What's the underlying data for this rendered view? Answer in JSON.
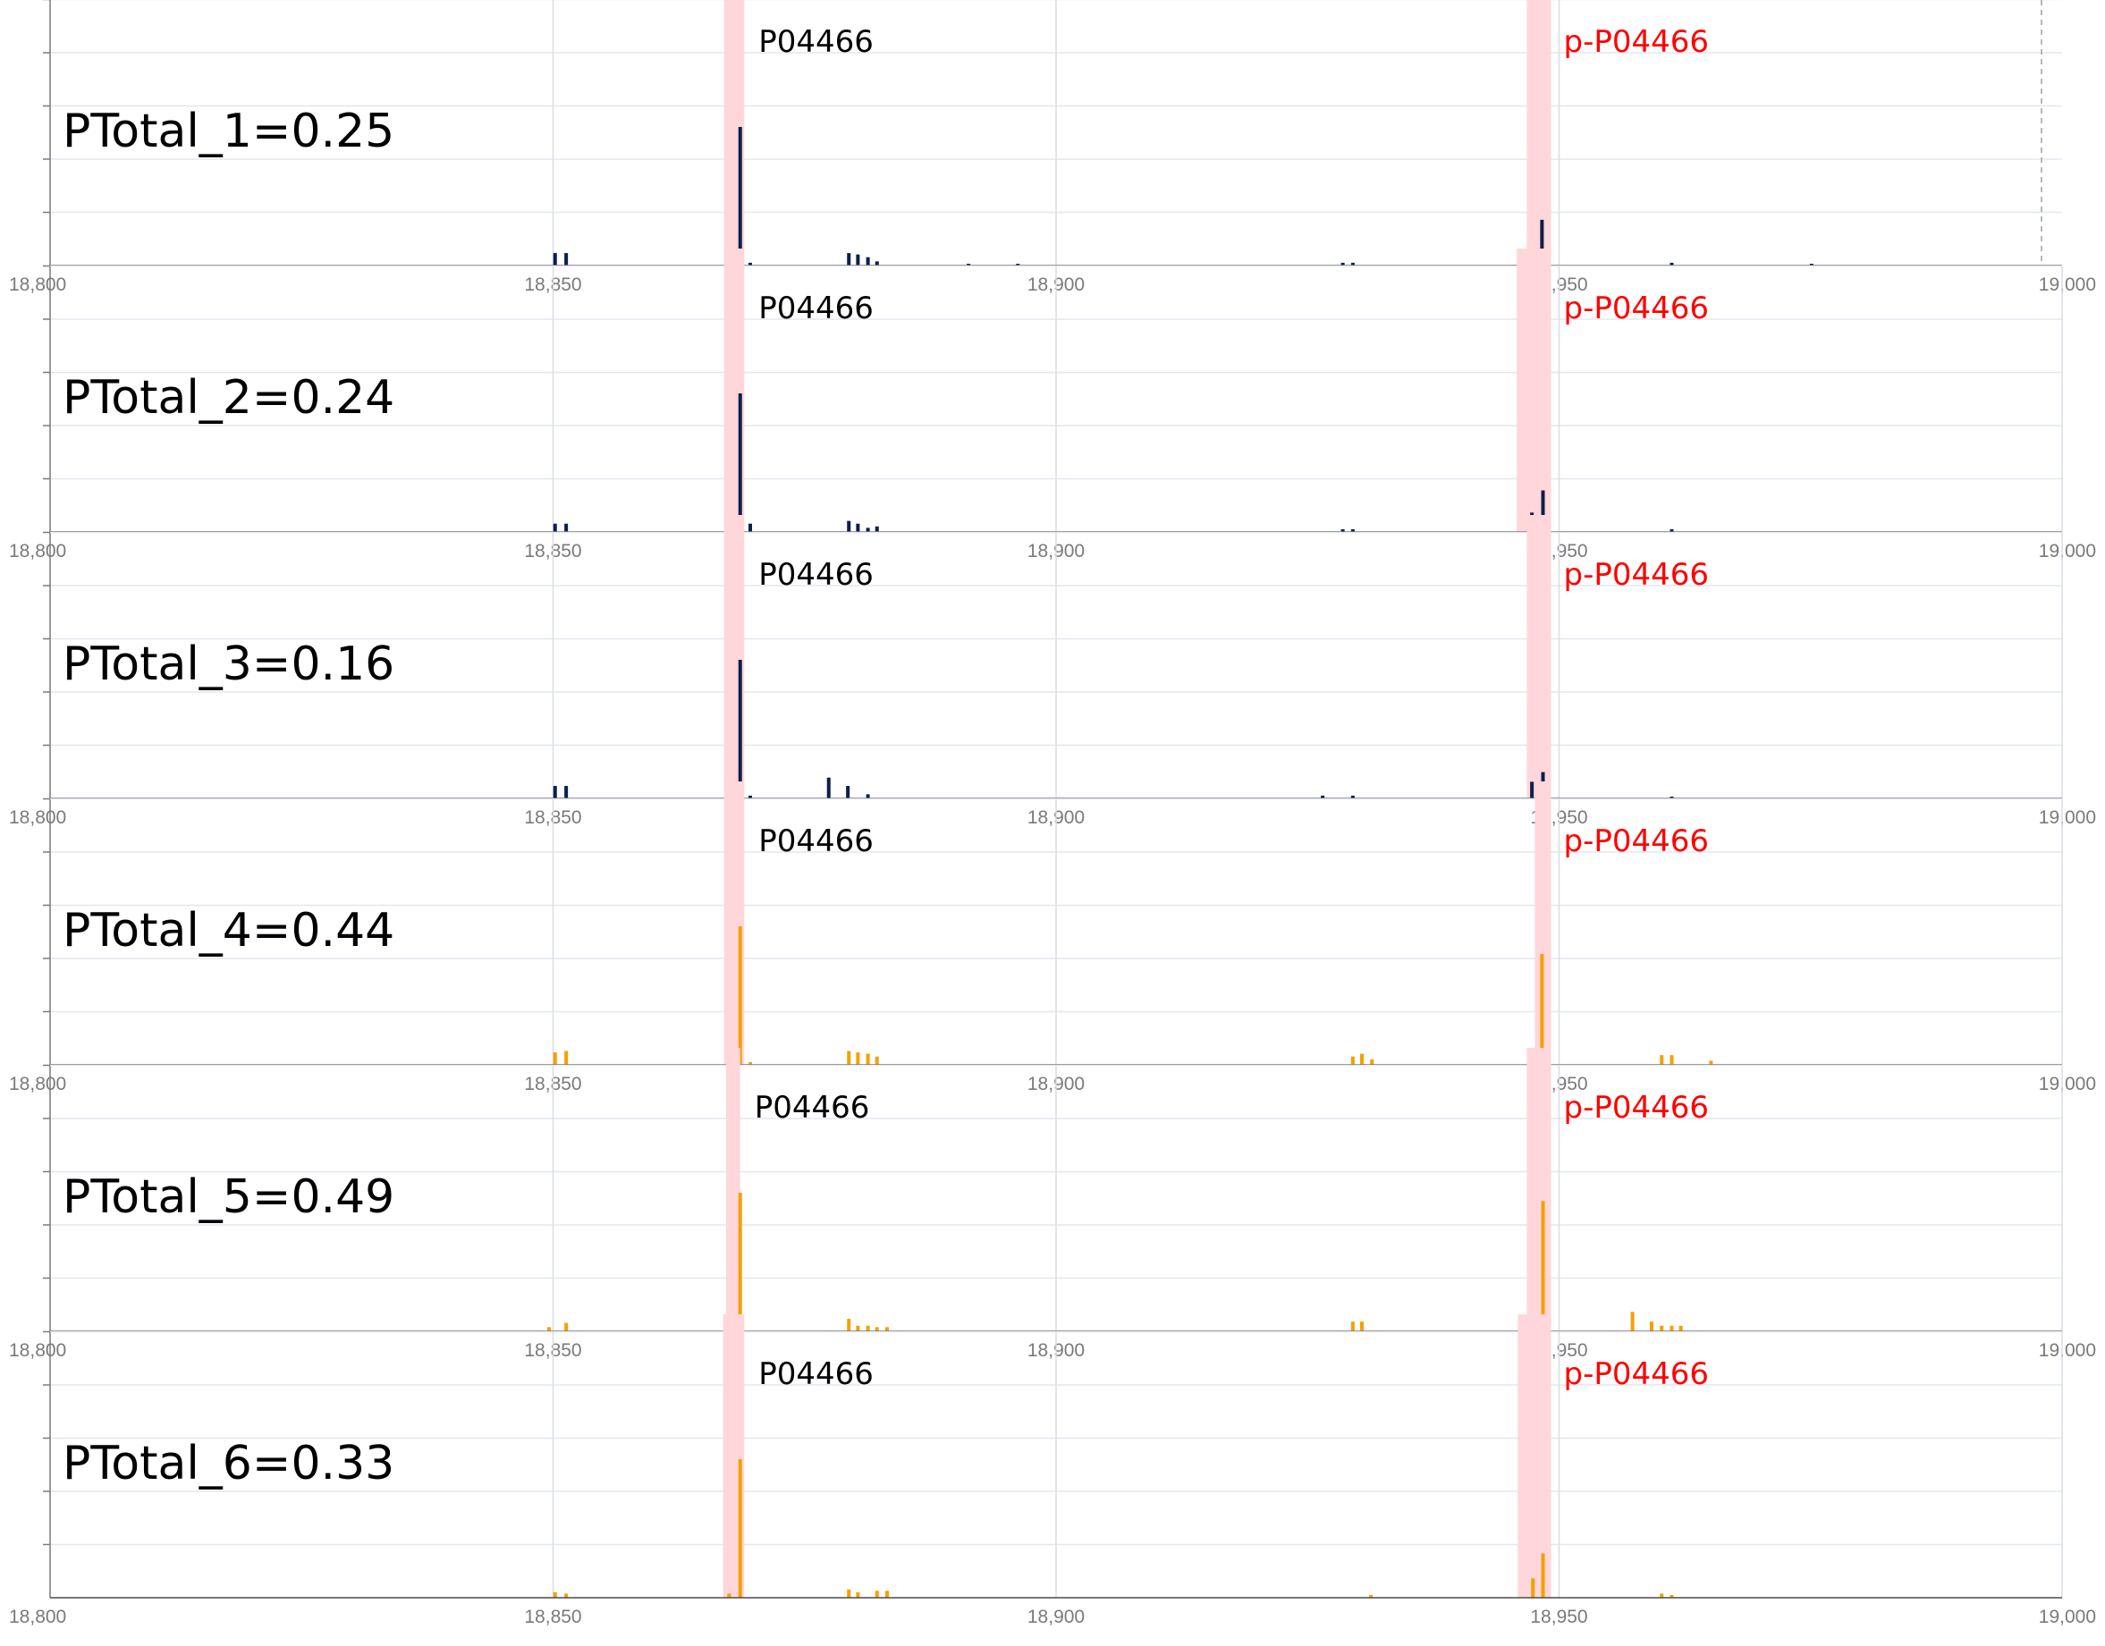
{
  "chart_data": [
    {
      "type": "bar",
      "xlim": [
        18800,
        19000
      ],
      "x_ticks": [
        18800,
        18850,
        18900,
        18950,
        19000
      ],
      "x_tick_labels": [
        "18,800",
        "18,850",
        "18,900",
        "18,950",
        "19,000"
      ],
      "grid": true,
      "color": "#0d1f4a",
      "annotation": "PTotal_1=0.25",
      "highlights": [
        {
          "label": "P04466",
          "color": "#000000",
          "from": 18867.0,
          "to": 18869.0
        },
        {
          "label": "p-P04466",
          "color": "#ff0000",
          "from": 18946.8,
          "to": 18949.2
        }
      ],
      "peaks": [
        {
          "x": 18850.2,
          "y": 0.09
        },
        {
          "x": 18851.3,
          "y": 0.09
        },
        {
          "x": 18867.5,
          "y": 0.09
        },
        {
          "x": 18868.6,
          "y": 1.0
        },
        {
          "x": 18869.6,
          "y": 0.02
        },
        {
          "x": 18879.4,
          "y": 0.09
        },
        {
          "x": 18880.3,
          "y": 0.08
        },
        {
          "x": 18881.3,
          "y": 0.06
        },
        {
          "x": 18882.2,
          "y": 0.03
        },
        {
          "x": 18891.3,
          "y": 0.01
        },
        {
          "x": 18896.2,
          "y": 0.01
        },
        {
          "x": 18928.5,
          "y": 0.02
        },
        {
          "x": 18929.5,
          "y": 0.02
        },
        {
          "x": 18948.3,
          "y": 0.33
        },
        {
          "x": 18961.2,
          "y": 0.02
        },
        {
          "x": 18975.1,
          "y": 0.01
        }
      ]
    },
    {
      "type": "bar",
      "xlim": [
        18800,
        19000
      ],
      "x_ticks": [
        18800,
        18850,
        18900,
        18950,
        19000
      ],
      "x_tick_labels": [
        "18,800",
        "18,850",
        "18,900",
        "18,950",
        "19,000"
      ],
      "grid": true,
      "color": "#0d1f4a",
      "annotation": "PTotal_2=0.24",
      "highlights": [
        {
          "label": "P04466",
          "color": "#000000",
          "from": 18867.0,
          "to": 18869.0
        },
        {
          "label": "p-P04466",
          "color": "#ff0000",
          "from": 18945.8,
          "to": 18949.2
        }
      ],
      "peaks": [
        {
          "x": 18850.2,
          "y": 0.06
        },
        {
          "x": 18851.3,
          "y": 0.06
        },
        {
          "x": 18867.5,
          "y": 0.05
        },
        {
          "x": 18868.6,
          "y": 1.0
        },
        {
          "x": 18869.6,
          "y": 0.06
        },
        {
          "x": 18879.4,
          "y": 0.08
        },
        {
          "x": 18880.3,
          "y": 0.06
        },
        {
          "x": 18881.3,
          "y": 0.03
        },
        {
          "x": 18882.2,
          "y": 0.04
        },
        {
          "x": 18928.5,
          "y": 0.02
        },
        {
          "x": 18929.5,
          "y": 0.02
        },
        {
          "x": 18947.3,
          "y": 0.14
        },
        {
          "x": 18948.4,
          "y": 0.3
        },
        {
          "x": 18961.2,
          "y": 0.02
        }
      ]
    },
    {
      "type": "bar",
      "xlim": [
        18800,
        19000
      ],
      "x_ticks": [
        18800,
        18850,
        18900,
        18950,
        19000
      ],
      "x_tick_labels": [
        "18,800",
        "18,850",
        "18,900",
        "18,950",
        "19,000"
      ],
      "grid": true,
      "color": "#0d1f4a",
      "annotation": "PTotal_3=0.16",
      "highlights": [
        {
          "label": "P04466",
          "color": "#000000",
          "from": 18867.0,
          "to": 18869.0
        },
        {
          "label": "p-P04466",
          "color": "#ff0000",
          "from": 18946.8,
          "to": 18949.2
        }
      ],
      "peaks": [
        {
          "x": 18850.2,
          "y": 0.09
        },
        {
          "x": 18851.3,
          "y": 0.09
        },
        {
          "x": 18867.5,
          "y": 0.04
        },
        {
          "x": 18868.6,
          "y": 1.0
        },
        {
          "x": 18869.6,
          "y": 0.02
        },
        {
          "x": 18877.4,
          "y": 0.15
        },
        {
          "x": 18879.3,
          "y": 0.09
        },
        {
          "x": 18881.3,
          "y": 0.03
        },
        {
          "x": 18926.5,
          "y": 0.02
        },
        {
          "x": 18929.5,
          "y": 0.02
        },
        {
          "x": 18947.3,
          "y": 0.12
        },
        {
          "x": 18948.4,
          "y": 0.19
        },
        {
          "x": 18961.2,
          "y": 0.01
        }
      ]
    },
    {
      "type": "bar",
      "xlim": [
        18800,
        19000
      ],
      "x_ticks": [
        18800,
        18850,
        18900,
        18950,
        19000
      ],
      "x_tick_labels": [
        "18,800",
        "18,850",
        "18,900",
        "18,950",
        "19,000"
      ],
      "grid": true,
      "color": "#f5a000",
      "annotation": "PTotal_4=0.44",
      "highlights": [
        {
          "label": "P04466",
          "color": "#000000",
          "from": 18867.0,
          "to": 18869.0
        },
        {
          "label": "p-P04466",
          "color": "#ff0000",
          "from": 18947.6,
          "to": 18949.2
        }
      ],
      "peaks": [
        {
          "x": 18850.2,
          "y": 0.09
        },
        {
          "x": 18851.3,
          "y": 0.1
        },
        {
          "x": 18867.5,
          "y": 0.04
        },
        {
          "x": 18868.6,
          "y": 1.0
        },
        {
          "x": 18869.6,
          "y": 0.02
        },
        {
          "x": 18879.4,
          "y": 0.1
        },
        {
          "x": 18880.3,
          "y": 0.09
        },
        {
          "x": 18881.3,
          "y": 0.08
        },
        {
          "x": 18882.2,
          "y": 0.06
        },
        {
          "x": 18929.5,
          "y": 0.06
        },
        {
          "x": 18930.4,
          "y": 0.08
        },
        {
          "x": 18931.4,
          "y": 0.04
        },
        {
          "x": 18948.3,
          "y": 0.8
        },
        {
          "x": 18960.2,
          "y": 0.07
        },
        {
          "x": 18961.2,
          "y": 0.07
        },
        {
          "x": 18965.1,
          "y": 0.03
        }
      ]
    },
    {
      "type": "bar",
      "xlim": [
        18800,
        19000
      ],
      "x_ticks": [
        18800,
        18850,
        18900,
        18950,
        19000
      ],
      "x_tick_labels": [
        "18,800",
        "18,850",
        "18,900",
        "18,950",
        "19,000"
      ],
      "grid": true,
      "color": "#f5a000",
      "annotation": "PTotal_5=0.49",
      "highlights": [
        {
          "label": "P04466",
          "color": "#000000",
          "from": 18867.2,
          "to": 18868.6
        },
        {
          "label": "p-P04466",
          "color": "#ff0000",
          "from": 18946.8,
          "to": 18949.2
        }
      ],
      "peaks": [
        {
          "x": 18849.6,
          "y": 0.03
        },
        {
          "x": 18851.3,
          "y": 0.06
        },
        {
          "x": 18868.6,
          "y": 1.0
        },
        {
          "x": 18879.4,
          "y": 0.09
        },
        {
          "x": 18880.3,
          "y": 0.04
        },
        {
          "x": 18881.3,
          "y": 0.04
        },
        {
          "x": 18882.2,
          "y": 0.03
        },
        {
          "x": 18883.2,
          "y": 0.03
        },
        {
          "x": 18929.5,
          "y": 0.07
        },
        {
          "x": 18930.4,
          "y": 0.07
        },
        {
          "x": 18946.9,
          "y": 0.03
        },
        {
          "x": 18948.4,
          "y": 0.94
        },
        {
          "x": 18957.3,
          "y": 0.14
        },
        {
          "x": 18959.2,
          "y": 0.07
        },
        {
          "x": 18960.2,
          "y": 0.04
        },
        {
          "x": 18961.2,
          "y": 0.04
        },
        {
          "x": 18962.1,
          "y": 0.04
        }
      ]
    },
    {
      "type": "bar",
      "xlim": [
        18800,
        19000
      ],
      "x_ticks": [
        18800,
        18850,
        18900,
        18950,
        19000
      ],
      "x_tick_labels": [
        "18,800",
        "18,850",
        "18,900",
        "18,950",
        "19,000"
      ],
      "grid": true,
      "color": "#f5a000",
      "annotation": "PTotal_6=0.33",
      "highlights": [
        {
          "label": "P04466",
          "color": "#000000",
          "from": 18866.9,
          "to": 18869.0
        },
        {
          "label": "p-P04466",
          "color": "#ff0000",
          "from": 18945.9,
          "to": 18949.2
        }
      ],
      "peaks": [
        {
          "x": 18850.2,
          "y": 0.04
        },
        {
          "x": 18851.3,
          "y": 0.03
        },
        {
          "x": 18867.5,
          "y": 0.03
        },
        {
          "x": 18868.6,
          "y": 1.0
        },
        {
          "x": 18879.4,
          "y": 0.06
        },
        {
          "x": 18880.3,
          "y": 0.04
        },
        {
          "x": 18882.2,
          "y": 0.05
        },
        {
          "x": 18883.2,
          "y": 0.05
        },
        {
          "x": 18931.3,
          "y": 0.02
        },
        {
          "x": 18947.4,
          "y": 0.14
        },
        {
          "x": 18948.4,
          "y": 0.32
        },
        {
          "x": 18960.2,
          "y": 0.03
        },
        {
          "x": 18961.2,
          "y": 0.02
        }
      ]
    }
  ]
}
